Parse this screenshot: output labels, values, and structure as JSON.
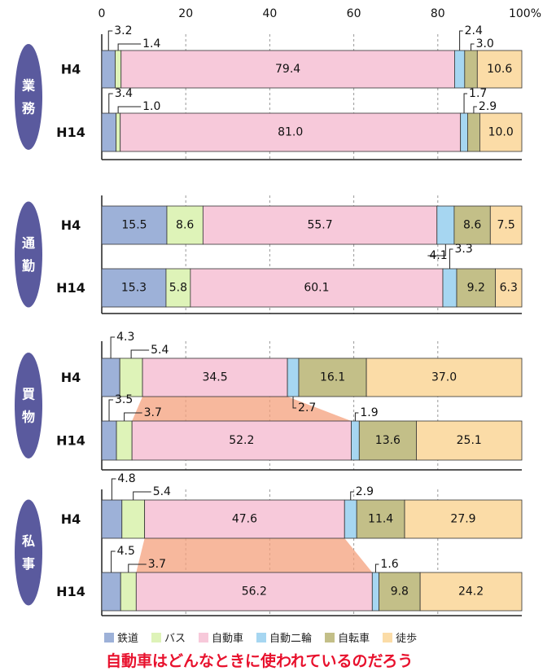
{
  "colors": {
    "rail": "#9db1d8",
    "bus": "#def3b8",
    "car": "#f7c9da",
    "motorcycle": "#a6d6f1",
    "bicycle": "#c3bf88",
    "walk": "#fbdca7",
    "group_label": "#5a5a9e",
    "title": "#e8112d",
    "trend": "#f4a07c"
  },
  "legend": [
    {
      "key": "rail",
      "label": "鉄道"
    },
    {
      "key": "bus",
      "label": "バス"
    },
    {
      "key": "car",
      "label": "自動車"
    },
    {
      "key": "motorcycle",
      "label": "自動二輪"
    },
    {
      "key": "bicycle",
      "label": "自転車"
    },
    {
      "key": "walk",
      "label": "徒歩"
    }
  ],
  "bottom_title": "自動車はどんなときに使われているのだろう",
  "chart_data": {
    "type": "bar",
    "orientation": "horizontal",
    "stacked": true,
    "xlim": [
      0,
      100
    ],
    "xticks": [
      "0",
      "20",
      "40",
      "60",
      "80",
      "100%"
    ],
    "series_order": [
      "rail",
      "bus",
      "car",
      "motorcycle",
      "bicycle",
      "walk"
    ],
    "groups": [
      {
        "label": "業務",
        "bars": [
          {
            "label": "H4",
            "values": [
              3.2,
              1.4,
              79.4,
              2.4,
              3.0,
              10.6
            ]
          },
          {
            "label": "H14",
            "values": [
              3.4,
              1.0,
              81.0,
              1.7,
              2.9,
              10.0
            ]
          }
        ]
      },
      {
        "label": "通勤",
        "bars": [
          {
            "label": "H4",
            "values": [
              15.5,
              8.6,
              55.7,
              4.1,
              8.6,
              7.5
            ]
          },
          {
            "label": "H14",
            "values": [
              15.3,
              5.8,
              60.1,
              3.3,
              9.2,
              6.3
            ]
          }
        ]
      },
      {
        "label": "買物",
        "bars": [
          {
            "label": "H4",
            "values": [
              4.3,
              5.4,
              34.5,
              2.7,
              16.1,
              37.0
            ]
          },
          {
            "label": "H14",
            "values": [
              3.5,
              3.7,
              52.2,
              1.9,
              13.6,
              25.1
            ]
          }
        ]
      },
      {
        "label": "私事",
        "bars": [
          {
            "label": "H4",
            "values": [
              4.8,
              5.4,
              47.6,
              2.9,
              11.4,
              27.9
            ]
          },
          {
            "label": "H14",
            "values": [
              4.5,
              3.7,
              56.2,
              1.6,
              9.8,
              24.2
            ]
          }
        ]
      }
    ]
  }
}
